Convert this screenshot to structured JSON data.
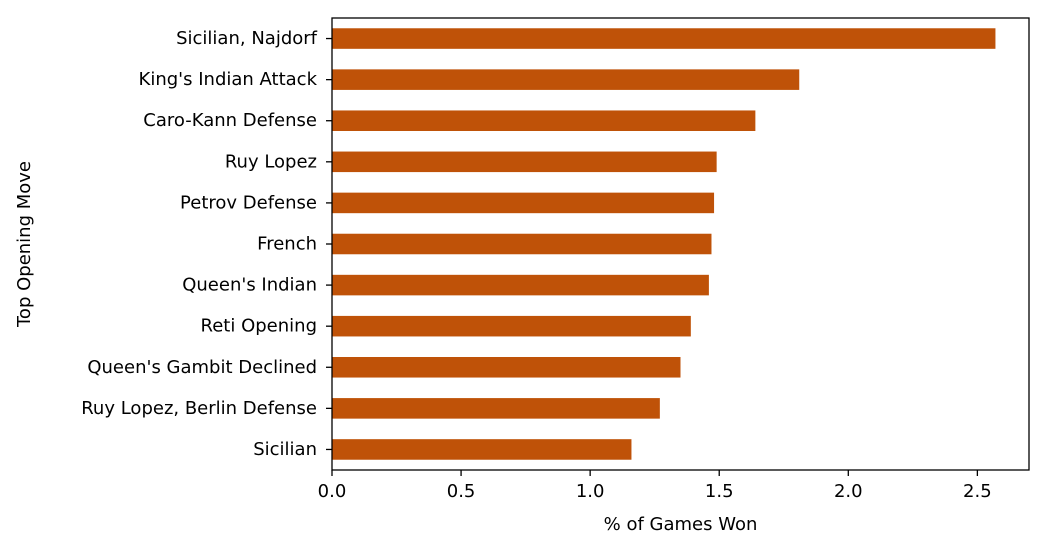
{
  "chart_data": {
    "type": "bar",
    "orientation": "horizontal",
    "title": "",
    "xlabel": "% of Games Won",
    "ylabel": "Top Opening Move",
    "categories": [
      "Sicilian, Najdorf",
      "King's Indian Attack",
      "Caro-Kann Defense",
      "Ruy Lopez",
      "Petrov Defense",
      "French",
      "Queen's Indian",
      "Reti Opening",
      "Queen's Gambit Declined",
      "Ruy Lopez, Berlin Defense",
      "Sicilian"
    ],
    "values": [
      2.57,
      1.81,
      1.64,
      1.49,
      1.48,
      1.47,
      1.46,
      1.39,
      1.35,
      1.27,
      1.16
    ],
    "xlim": [
      0,
      2.7
    ],
    "xticks": [
      0.0,
      0.5,
      1.0,
      1.5,
      2.0,
      2.5
    ],
    "xtick_labels": [
      "0.0",
      "0.5",
      "1.0",
      "1.5",
      "2.0",
      "2.5"
    ],
    "bar_color": "#bf5208",
    "grid": false,
    "legend": "none"
  }
}
